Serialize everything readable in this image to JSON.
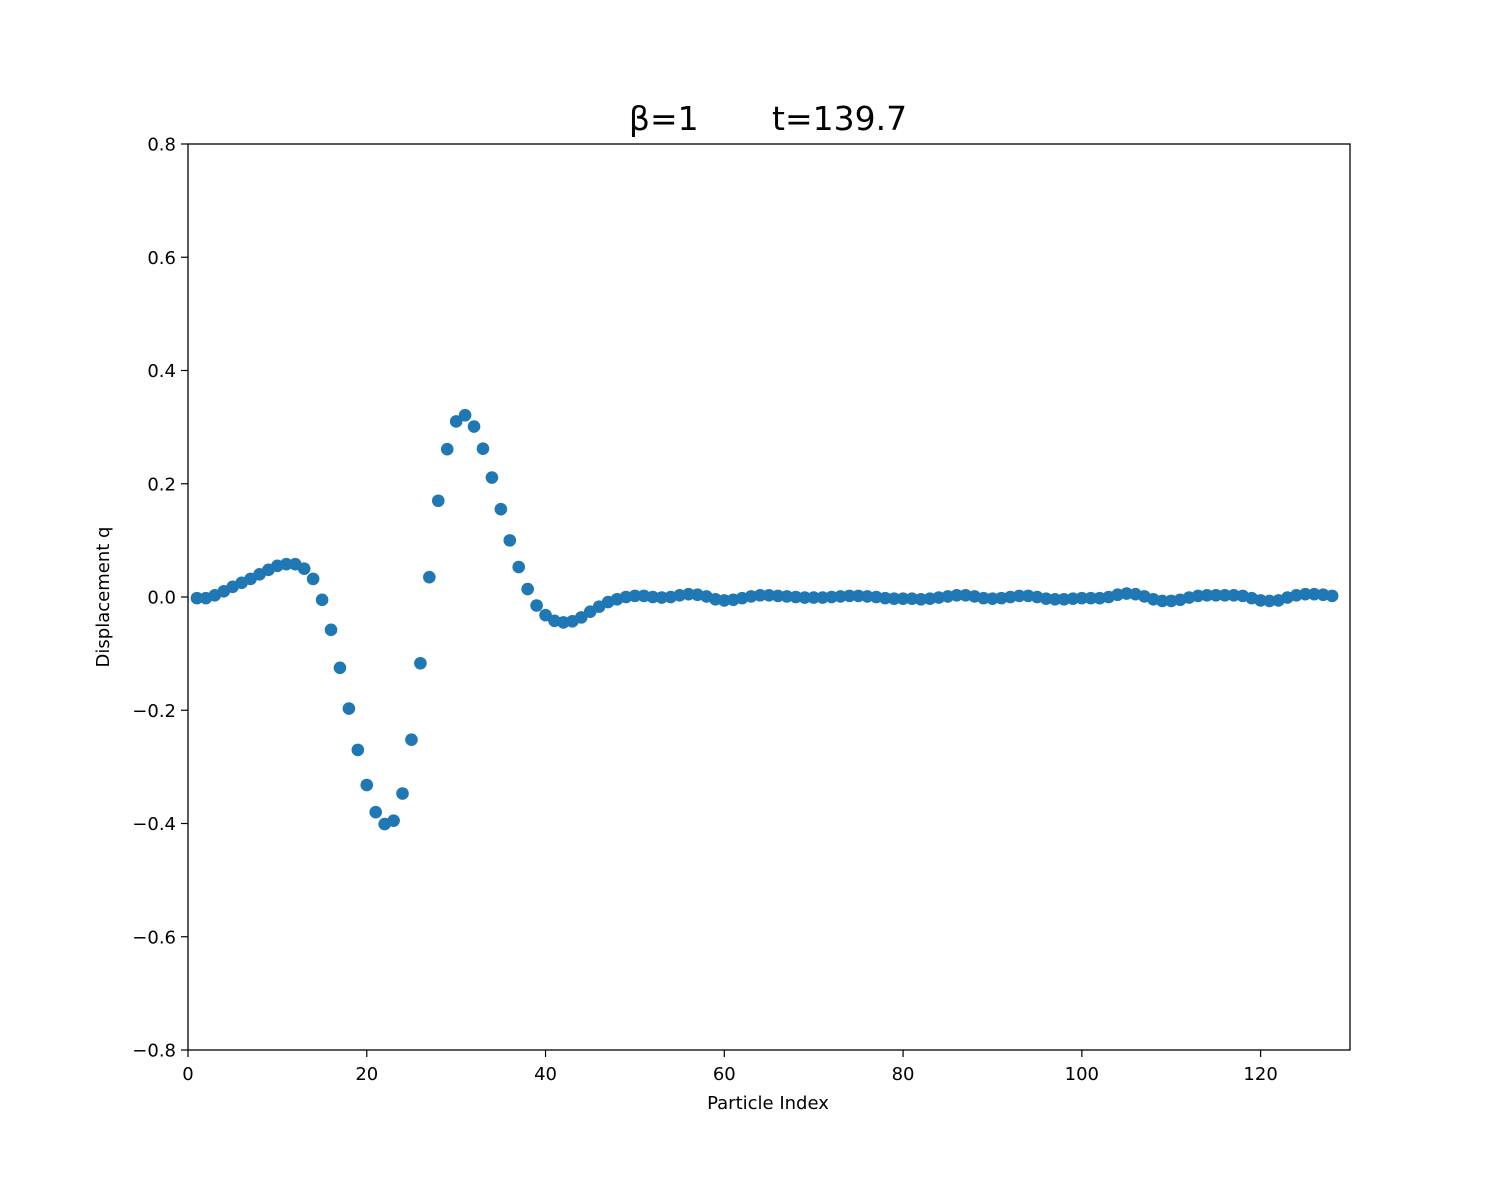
{
  "chart_data": {
    "type": "scatter",
    "title": "β=1       t=139.7",
    "xlabel": "Particle Index",
    "ylabel": "Displacement q",
    "xlim": [
      0,
      130
    ],
    "ylim": [
      -0.8,
      0.8
    ],
    "xticks": [
      0,
      20,
      40,
      60,
      80,
      100,
      120
    ],
    "yticks": [
      -0.8,
      -0.6,
      -0.4,
      -0.2,
      0.0,
      0.2,
      0.4,
      0.6,
      0.8
    ],
    "xtick_labels": [
      "0",
      "20",
      "40",
      "60",
      "80",
      "100",
      "120"
    ],
    "ytick_labels": [
      "−0.8",
      "−0.6",
      "−0.4",
      "−0.2",
      "0.0",
      "0.2",
      "0.4",
      "0.6",
      "0.8"
    ],
    "grid": false,
    "marker_color": "#1f77b4",
    "series": [
      {
        "x": [
          1,
          2,
          3,
          4,
          5,
          6,
          7,
          8,
          9,
          10,
          11,
          12,
          13,
          14,
          15,
          16,
          17,
          18,
          19,
          20,
          21,
          22,
          23,
          24,
          25,
          26,
          27,
          28,
          29,
          30,
          31,
          32,
          33,
          34,
          35,
          36,
          37,
          38,
          39,
          40,
          41,
          42,
          43,
          44,
          45,
          46,
          47,
          48,
          49,
          50,
          51,
          52,
          53,
          54,
          55,
          56,
          57,
          58,
          59,
          60,
          61,
          62,
          63,
          64,
          65,
          66,
          67,
          68,
          69,
          70,
          71,
          72,
          73,
          74,
          75,
          76,
          77,
          78,
          79,
          80,
          81,
          82,
          83,
          84,
          85,
          86,
          87,
          88,
          89,
          90,
          91,
          92,
          93,
          94,
          95,
          96,
          97,
          98,
          99,
          100,
          101,
          102,
          103,
          104,
          105,
          106,
          107,
          108,
          109,
          110,
          111,
          112,
          113,
          114,
          115,
          116,
          117,
          118,
          119,
          120,
          121,
          122,
          123,
          124,
          125,
          126,
          127,
          128
        ],
        "y": [
          -0.002,
          -0.002,
          0.003,
          0.01,
          0.018,
          0.025,
          0.032,
          0.04,
          0.048,
          0.055,
          0.058,
          0.058,
          0.05,
          0.032,
          -0.005,
          -0.058,
          -0.125,
          -0.197,
          -0.27,
          -0.332,
          -0.38,
          -0.401,
          -0.395,
          -0.347,
          -0.252,
          -0.117,
          0.035,
          0.17,
          0.261,
          0.31,
          0.321,
          0.301,
          0.262,
          0.211,
          0.155,
          0.1,
          0.053,
          0.014,
          -0.015,
          -0.032,
          -0.042,
          -0.045,
          -0.043,
          -0.036,
          -0.026,
          -0.017,
          -0.009,
          -0.004,
          0.0,
          0.002,
          0.002,
          0.0,
          -0.001,
          0.0,
          0.003,
          0.005,
          0.004,
          0.001,
          -0.004,
          -0.006,
          -0.005,
          -0.002,
          0.001,
          0.003,
          0.003,
          0.002,
          0.001,
          0.0,
          -0.001,
          -0.001,
          -0.001,
          0.0,
          0.001,
          0.002,
          0.002,
          0.001,
          0.0,
          -0.002,
          -0.003,
          -0.003,
          -0.003,
          -0.004,
          -0.003,
          -0.001,
          0.001,
          0.003,
          0.003,
          0.001,
          -0.002,
          -0.003,
          -0.002,
          0.0,
          0.002,
          0.002,
          0.0,
          -0.003,
          -0.004,
          -0.004,
          -0.003,
          -0.002,
          -0.002,
          -0.002,
          0.0,
          0.004,
          0.006,
          0.005,
          0.001,
          -0.004,
          -0.007,
          -0.007,
          -0.005,
          -0.001,
          0.002,
          0.003,
          0.003,
          0.003,
          0.003,
          0.002,
          -0.002,
          -0.006,
          -0.007,
          -0.006,
          -0.001,
          0.003,
          0.005,
          0.005,
          0.004,
          0.002
        ]
      }
    ]
  }
}
